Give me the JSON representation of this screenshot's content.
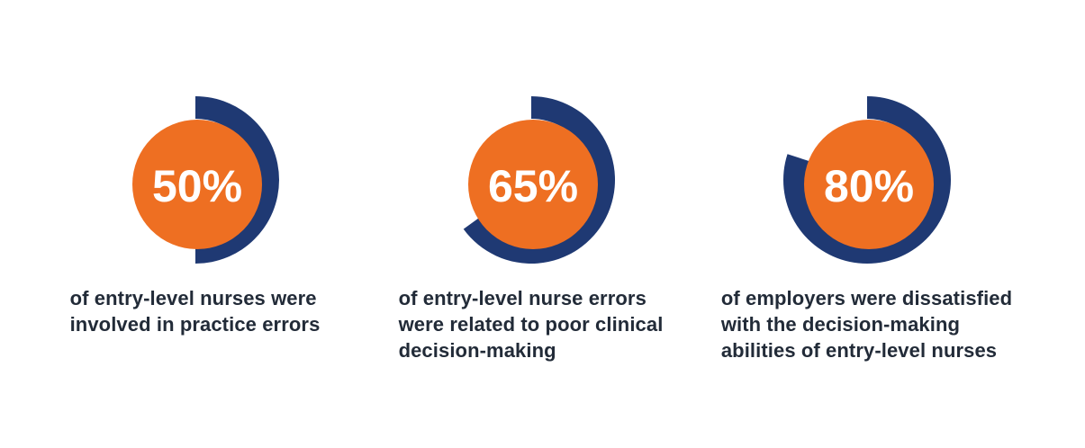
{
  "colors": {
    "orange": "#EE6F22",
    "navy": "#1F3973",
    "text": "#222B38",
    "percent_text": "#ffffff",
    "background": "#ffffff"
  },
  "chart_data": {
    "type": "donut",
    "unit": "percent",
    "max": 100,
    "arc_start_deg": 0,
    "arc_direction": "clockwise",
    "legend_position": "none",
    "series": [
      {
        "value": 50,
        "label": "50%",
        "caption_lines": [
          "of entry-level nurses were",
          "involved in practice errors"
        ]
      },
      {
        "value": 65,
        "label": "65%",
        "caption_lines": [
          "of entry-level nurse errors",
          "were related to poor clinical",
          "decision-making"
        ]
      },
      {
        "value": 80,
        "label": "80%",
        "caption_lines": [
          "of employers were dissatisfied",
          "with the decision-making",
          "abilities of entry-level nurses"
        ]
      }
    ]
  }
}
